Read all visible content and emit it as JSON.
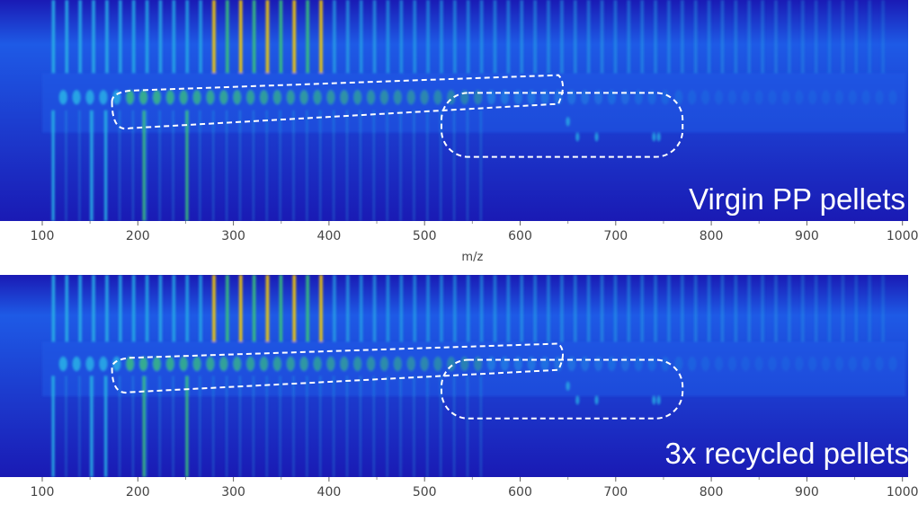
{
  "chart_data": [
    {
      "type": "heatmap",
      "panel": "top",
      "sample_label": "Virgin PP pellets",
      "xlabel": "m/z",
      "xlim": [
        100,
        1000
      ],
      "xticks": [
        100,
        200,
        300,
        400,
        500,
        600,
        700,
        800,
        900,
        1000
      ],
      "xtick_labels": [
        "100",
        "200",
        "300",
        "400",
        "500",
        "600",
        "700",
        "800",
        "900",
        "1000"
      ],
      "colormap": [
        "#1a1ab4",
        "#1e5ae6",
        "#28b4e6",
        "#3cc878",
        "#ffd200"
      ],
      "highlight_regions": [
        {
          "style": "dashed-rounded",
          "x_range": [
            220,
            640
          ]
        },
        {
          "style": "dashed-rounded",
          "x_range": [
            560,
            770
          ]
        }
      ]
    },
    {
      "type": "heatmap",
      "panel": "bottom",
      "sample_label": "3x recycled pellets",
      "xlabel": "m/z",
      "xlim": [
        100,
        1000
      ],
      "xticks": [
        100,
        200,
        300,
        400,
        500,
        600,
        700,
        800,
        900,
        1000
      ],
      "xtick_labels": [
        "100",
        "200",
        "300",
        "400",
        "500",
        "600",
        "700",
        "800",
        "900",
        "1000"
      ],
      "colormap": [
        "#1a1ab4",
        "#1e5ae6",
        "#28b4e6",
        "#3cc878",
        "#ffd200"
      ],
      "highlight_regions": [
        {
          "style": "dashed-rounded",
          "x_range": [
            220,
            640
          ]
        },
        {
          "style": "dashed-rounded",
          "x_range": [
            560,
            770
          ]
        }
      ]
    }
  ]
}
